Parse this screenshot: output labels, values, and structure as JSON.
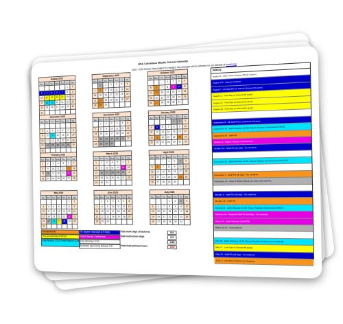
{
  "document": {
    "school_title": "HSA Columbus Middle School Calendar",
    "subtitle": "2025 - 2026 School Year (subject to change). Any changes will be reflected on our website at",
    "website": "hsaoh.org"
  },
  "calendar": {
    "day_names": [
      "Sun",
      "Mon",
      "Tue",
      "Wed",
      "Thu",
      "Fri",
      "Sat"
    ],
    "months": [
      {
        "name": "August 2025",
        "weeks": [
          [
            "",
            "",
            "",
            "",
            "",
            "1",
            "2"
          ],
          [
            "3",
            "4",
            "5",
            "6",
            "7",
            "8",
            "9"
          ],
          [
            "10",
            "11",
            "12",
            "13",
            "14",
            "15",
            "16"
          ],
          [
            "17",
            "18",
            "19",
            "20",
            "21",
            "22",
            "23"
          ],
          [
            "24",
            "25",
            "26",
            "27",
            "28",
            "29",
            "30"
          ],
          [
            "31",
            "",
            "",
            "",
            "",
            "",
            ""
          ]
        ]
      },
      {
        "name": "September 2025",
        "weeks": [
          [
            "",
            "1",
            "2",
            "3",
            "4",
            "5",
            "6"
          ],
          [
            "7",
            "8",
            "9",
            "10",
            "11",
            "12",
            "13"
          ],
          [
            "14",
            "15",
            "16",
            "17",
            "18",
            "19",
            "20"
          ],
          [
            "21",
            "22",
            "23",
            "24",
            "25",
            "26",
            "27"
          ],
          [
            "28",
            "29",
            "30",
            "",
            "",
            "",
            ""
          ]
        ]
      },
      {
        "name": "October 2025",
        "weeks": [
          [
            "",
            "",
            "",
            "1",
            "2",
            "3",
            "4"
          ],
          [
            "5",
            "6",
            "7",
            "8",
            "9",
            "10",
            "11"
          ],
          [
            "12",
            "13",
            "14",
            "15",
            "16",
            "17",
            "18"
          ],
          [
            "19",
            "20",
            "21",
            "22",
            "23",
            "24",
            "25"
          ],
          [
            "26",
            "27",
            "28",
            "29",
            "30",
            "31",
            ""
          ]
        ]
      },
      {
        "name": "November 2025",
        "weeks": [
          [
            "",
            "",
            "",
            "",
            "",
            "",
            "1"
          ],
          [
            "2",
            "3",
            "4",
            "5",
            "6",
            "7",
            "8"
          ],
          [
            "9",
            "10",
            "11",
            "12",
            "13",
            "14",
            "15"
          ],
          [
            "16",
            "17",
            "18",
            "19",
            "20",
            "21",
            "22"
          ],
          [
            "23",
            "24",
            "25",
            "26",
            "27",
            "28",
            "29"
          ],
          [
            "30",
            "",
            "",
            "",
            "",
            "",
            ""
          ]
        ]
      },
      {
        "name": "December 2025",
        "weeks": [
          [
            "",
            "1",
            "2",
            "3",
            "4",
            "5",
            "6"
          ],
          [
            "7",
            "8",
            "9",
            "10",
            "11",
            "12",
            "13"
          ],
          [
            "14",
            "15",
            "16",
            "17",
            "18",
            "19",
            "20"
          ],
          [
            "21",
            "22",
            "23",
            "24",
            "25",
            "26",
            "27"
          ],
          [
            "28",
            "29",
            "30",
            "31",
            "",
            "",
            ""
          ]
        ]
      },
      {
        "name": "January 2026",
        "weeks": [
          [
            "",
            "",
            "",
            "",
            "1",
            "2",
            "3"
          ],
          [
            "4",
            "5",
            "6",
            "7",
            "8",
            "9",
            "10"
          ],
          [
            "11",
            "12",
            "13",
            "14",
            "15",
            "16",
            "17"
          ],
          [
            "18",
            "19",
            "20",
            "21",
            "22",
            "23",
            "24"
          ],
          [
            "25",
            "26",
            "27",
            "28",
            "29",
            "30",
            "31"
          ]
        ]
      },
      {
        "name": "February 2026",
        "weeks": [
          [
            "1",
            "2",
            "3",
            "4",
            "5",
            "6",
            "7"
          ],
          [
            "8",
            "9",
            "10",
            "11",
            "12",
            "13",
            "14"
          ],
          [
            "15",
            "16",
            "17",
            "18",
            "19",
            "20",
            "21"
          ],
          [
            "22",
            "23",
            "24",
            "25",
            "26",
            "27",
            "28"
          ]
        ]
      },
      {
        "name": "March 2026",
        "weeks": [
          [
            "1",
            "2",
            "3",
            "4",
            "5",
            "6",
            "7"
          ],
          [
            "8",
            "9",
            "10",
            "11",
            "12",
            "13",
            "14"
          ],
          [
            "15",
            "16",
            "17",
            "18",
            "19",
            "20",
            "21"
          ],
          [
            "22",
            "23",
            "24",
            "25",
            "26",
            "27",
            "28"
          ],
          [
            "29",
            "30",
            "31",
            "",
            "",
            "",
            ""
          ]
        ]
      },
      {
        "name": "April 2026",
        "weeks": [
          [
            "",
            "",
            "",
            "1",
            "2",
            "3",
            "4"
          ],
          [
            "5",
            "6",
            "7",
            "8",
            "9",
            "10",
            "11"
          ],
          [
            "12",
            "13",
            "14",
            "15",
            "16",
            "17",
            "18"
          ],
          [
            "19",
            "20",
            "21",
            "22",
            "23",
            "24",
            "25"
          ],
          [
            "26",
            "27",
            "28",
            "29",
            "30",
            "",
            ""
          ]
        ]
      },
      {
        "name": "May 2026",
        "weeks": [
          [
            "",
            "",
            "",
            "",
            "",
            "1",
            "2"
          ],
          [
            "3",
            "4",
            "5",
            "6",
            "7",
            "8",
            "9"
          ],
          [
            "10",
            "11",
            "12",
            "13",
            "14",
            "15",
            "16"
          ],
          [
            "17",
            "18",
            "19",
            "20",
            "21",
            "22",
            "23"
          ],
          [
            "24",
            "25",
            "26",
            "27",
            "28",
            "29",
            "30"
          ],
          [
            "31",
            "",
            "",
            "",
            "",
            "",
            ""
          ]
        ]
      },
      {
        "name": "June 2026",
        "weeks": [
          [
            "",
            "1",
            "2",
            "3",
            "4",
            "5",
            "6"
          ],
          [
            "7",
            "8",
            "9",
            "10",
            "11",
            "12",
            "13"
          ],
          [
            "14",
            "15",
            "16",
            "17",
            "18",
            "19",
            "20"
          ],
          [
            "21",
            "22",
            "23",
            "24",
            "25",
            "26",
            "27"
          ],
          [
            "28",
            "29",
            "30",
            "",
            "",
            "",
            ""
          ]
        ]
      },
      {
        "name": "July 2026",
        "weeks": [
          [
            "",
            "",
            "",
            "1",
            "2",
            "3",
            "4"
          ],
          [
            "5",
            "6",
            "7",
            "8",
            "9",
            "10",
            "11"
          ],
          [
            "12",
            "13",
            "14",
            "15",
            "16",
            "17",
            "18"
          ],
          [
            "19",
            "20",
            "21",
            "22",
            "23",
            "24",
            "25"
          ],
          [
            "26",
            "27",
            "28",
            "29",
            "30",
            "31",
            ""
          ]
        ]
      }
    ],
    "highlights": {
      "0": {
        "3": "c-b",
        "4": "c-b",
        "5": "c-b",
        "6": "c-b",
        "7": "c-b",
        "11": "c-y",
        "12": "c-y",
        "13": "c-y",
        "14": "c-y",
        "18": "c-c",
        "19": "c-c"
      },
      "1": {
        "1": "c-g",
        "8": "c-o",
        "22": "c-o",
        "29": "c-o"
      },
      "2": {
        "6": "c-o",
        "9": "c-m",
        "10": "c-b",
        "13": "c-o",
        "27": "c-o"
      },
      "3": {
        "11": "c-c",
        "24": "c-g",
        "25": "c-g",
        "26": "c-g",
        "27": "c-g",
        "28": "c-g"
      },
      "4": {
        "22": "c-g",
        "23": "c-g",
        "24": "c-g",
        "25": "c-g",
        "26": "c-g",
        "29": "c-g",
        "30": "c-g",
        "31": "c-g"
      },
      "5": {
        "1": "c-g",
        "2": "c-g",
        "5": "c-b",
        "19": "c-o",
        "23": "c-o"
      },
      "6": {
        "13": "c-o",
        "16": "c-g",
        "20": "c-m"
      },
      "7": {
        "13": "c-m",
        "16": "c-g",
        "17": "c-g",
        "18": "c-g",
        "19": "c-g",
        "20": "c-g"
      },
      "8": {
        "3": "c-g",
        "6": "c-o",
        "24": "c-o"
      },
      "9": {
        "22": "c-m",
        "25": "c-g",
        "26": "c-c",
        "27": "c-y",
        "28": "c-b"
      },
      "10": {},
      "11": {
        "3": "c-g"
      }
    }
  },
  "needs": {
    "title": "NEEDS:",
    "items": [
      {
        "text": "August 3 - ONLY New Teacher PD for School",
        "cls": ""
      },
      {
        "text": "August 4-6 - Teacher Institute",
        "cls": "c-b"
      },
      {
        "text": "August 7 - All Staff PD for School (School 10-11am)",
        "cls": "c-b"
      },
      {
        "text": "August 11 - First Day of School 6th grade",
        "cls": "c-y"
      },
      {
        "text": "August 12 - First Day of School 7th grade",
        "cls": "c-y"
      },
      {
        "text": "August 13 - First Day of School 8th grade",
        "cls": "c-y"
      },
      {
        "text": "",
        "cls": ""
      },
      {
        "text": "September 8 - All Staff PD for Quarterly Reviews",
        "cls": "c-b"
      },
      {
        "text": "September 10 - Early Release (2:30) Parent Teacher Conferences 3:00-6",
        "cls": "c-c"
      },
      {
        "text": "September 26 - Staff PD",
        "cls": "c-o"
      },
      {
        "text": "October 9 - Parent Teacher Conferences",
        "cls": "c-m"
      },
      {
        "text": "October 10 - Staff PD (all day) - No students",
        "cls": "c-b"
      },
      {
        "text": "",
        "cls": ""
      },
      {
        "text": "November 11 - Early Release 12:30, Parent Teacher Conferences 3:00-6:30",
        "cls": "c-c"
      },
      {
        "text": "",
        "cls": ""
      },
      {
        "text": "December 1 - Staff PD (all day) - No students",
        "cls": "c-o"
      },
      {
        "text": "December 22 - Start of Winter Break (no days off) students",
        "cls": "c-g"
      },
      {
        "text": "",
        "cls": ""
      },
      {
        "text": "January 5 - Staff PD (all day) - No students",
        "cls": "c-b"
      },
      {
        "text": "January 19 - Staff PD",
        "cls": "c-o"
      },
      {
        "text": "February 4 - Early Release 12:30, Parent Teacher Conferences 3:00-6",
        "cls": "c-c"
      },
      {
        "text": "February 20 - Regional Staff PD (all day) - No students",
        "cls": "c-m"
      },
      {
        "text": "March 13 - Early Release (Staff PD)",
        "cls": "c-m"
      },
      {
        "text": "March 16-20 - Spring Break",
        "cls": "c-g"
      },
      {
        "text": "",
        "cls": ""
      },
      {
        "text": "May 26 - Early Release 12:30, Parent Teacher Conferences 3:00-6:30",
        "cls": "c-c"
      },
      {
        "text": "May 27 - Last Day of School 8th grade",
        "cls": "c-y"
      },
      {
        "text": "May 28 - Staff PD (all day) - No students",
        "cls": "c-b"
      },
      {
        "text": "June 3 - Last Day of School for Students",
        "cls": "c-o"
      }
    ]
  },
  "legend": {
    "items": [
      {
        "text": "Holidays/Breaks",
        "cls": "c-o"
      },
      {
        "text": "First and Last Day of School",
        "cls": "c-y"
      },
      {
        "text": "Early Release 12:30, Parent Teacher Conferences 3:00-6",
        "cls": "c-c"
      },
      {
        "text": "PD Teacher Only Days (4-5 Days)",
        "cls": "c-b"
      },
      {
        "text": "Parent Teacher Conferences",
        "cls": "c-m"
      },
      {
        "text": "Early Dismissal 12:30",
        "cls": ""
      },
      {
        "text": "Dedicated day to Early Release 2:30",
        "cls": ""
      }
    ],
    "totals": [
      {
        "label": "Total work days (Teachers)",
        "value": "183"
      },
      {
        "label": "Total instruction days",
        "value": "170"
      },
      {
        "label": "",
        "value": "1166"
      },
      {
        "label": "Total Instructional hours",
        "value": "1052"
      }
    ]
  }
}
